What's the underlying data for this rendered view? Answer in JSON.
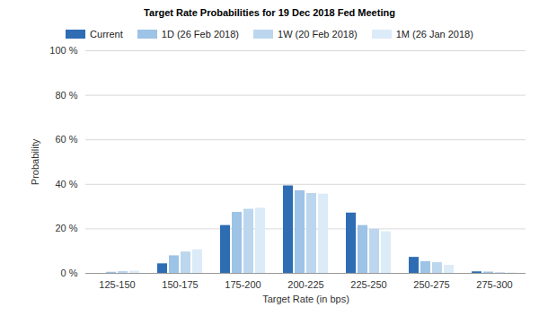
{
  "chart_data": {
    "type": "bar",
    "title": "Target Rate Probabilities for 19 Dec 2018 Fed Meeting",
    "x_label": "Target Rate (in bps)",
    "y_label": "Probability",
    "categories": [
      "125-150",
      "150-175",
      "175-200",
      "200-225",
      "225-250",
      "250-275",
      "275-300"
    ],
    "series": [
      {
        "name": "Current",
        "color": "#2e6db4",
        "values": [
          0,
          4.3,
          21.5,
          39.3,
          27.1,
          7.2,
          0.7
        ]
      },
      {
        "name": "1D (26 Feb 2018)",
        "color": "#9dc3e6",
        "values": [
          0.5,
          7.9,
          27.4,
          37.1,
          21.5,
          5.3,
          0.6
        ]
      },
      {
        "name": "1W (20 Feb 2018)",
        "color": "#bcd6ee",
        "values": [
          0.8,
          9.6,
          28.8,
          35.9,
          19.8,
          4.8,
          0.3
        ]
      },
      {
        "name": "1M (26 Jan 2018)",
        "color": "#dcebf8",
        "values": [
          1.0,
          10.6,
          29.3,
          35.6,
          18.7,
          3.6,
          0.2
        ]
      }
    ],
    "ylim": [
      0,
      100
    ],
    "yticks": [
      {
        "value": 0,
        "label": "0 %"
      },
      {
        "value": 20,
        "label": "20 %"
      },
      {
        "value": 40,
        "label": "40 %"
      },
      {
        "value": 60,
        "label": "60 %"
      },
      {
        "value": 80,
        "label": "80 %"
      },
      {
        "value": 100,
        "label": "100 %"
      }
    ],
    "grid": true,
    "legend": "top"
  }
}
